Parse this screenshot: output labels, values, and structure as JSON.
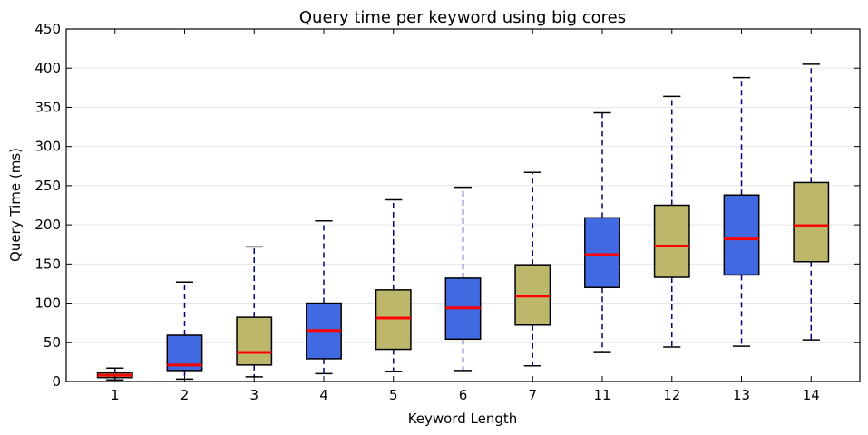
{
  "chart_data": {
    "type": "boxplot",
    "title": "Query time per keyword using big cores",
    "xlabel": "Keyword Length",
    "ylabel": "Query Time (ms)",
    "ylim": [
      0,
      450
    ],
    "yticks": [
      0,
      50,
      100,
      150,
      200,
      250,
      300,
      350,
      400,
      450
    ],
    "grid": "horizontal",
    "colors": {
      "box_blue": "#4169E1",
      "box_olive": "#BDB76B",
      "median": "#FF0000",
      "whisker": "#000080",
      "cap": "#000000",
      "box_edge": "#000000",
      "grid": "#e6e6e6"
    },
    "categories": [
      "1",
      "2",
      "3",
      "4",
      "5",
      "6",
      "7",
      "11",
      "12",
      "13",
      "14"
    ],
    "boxes": [
      {
        "category": "1",
        "fill": "olive",
        "min": 2,
        "q1": 5,
        "median": 8,
        "q3": 11,
        "max": 17
      },
      {
        "category": "2",
        "fill": "blue",
        "min": 3,
        "q1": 14,
        "median": 21,
        "q3": 59,
        "max": 127
      },
      {
        "category": "3",
        "fill": "olive",
        "min": 6,
        "q1": 21,
        "median": 37,
        "q3": 82,
        "max": 172
      },
      {
        "category": "4",
        "fill": "blue",
        "min": 10,
        "q1": 29,
        "median": 65,
        "q3": 100,
        "max": 205
      },
      {
        "category": "5",
        "fill": "olive",
        "min": 13,
        "q1": 41,
        "median": 81,
        "q3": 117,
        "max": 232
      },
      {
        "category": "6",
        "fill": "blue",
        "min": 14,
        "q1": 54,
        "median": 94,
        "q3": 132,
        "max": 248
      },
      {
        "category": "7",
        "fill": "olive",
        "min": 20,
        "q1": 72,
        "median": 109,
        "q3": 149,
        "max": 267
      },
      {
        "category": "11",
        "fill": "blue",
        "min": 38,
        "q1": 120,
        "median": 162,
        "q3": 209,
        "max": 343
      },
      {
        "category": "12",
        "fill": "olive",
        "min": 44,
        "q1": 133,
        "median": 173,
        "q3": 225,
        "max": 364
      },
      {
        "category": "13",
        "fill": "blue",
        "min": 45,
        "q1": 136,
        "median": 182,
        "q3": 238,
        "max": 388
      },
      {
        "category": "14",
        "fill": "olive",
        "min": 53,
        "q1": 153,
        "median": 199,
        "q3": 254,
        "max": 405
      }
    ]
  }
}
